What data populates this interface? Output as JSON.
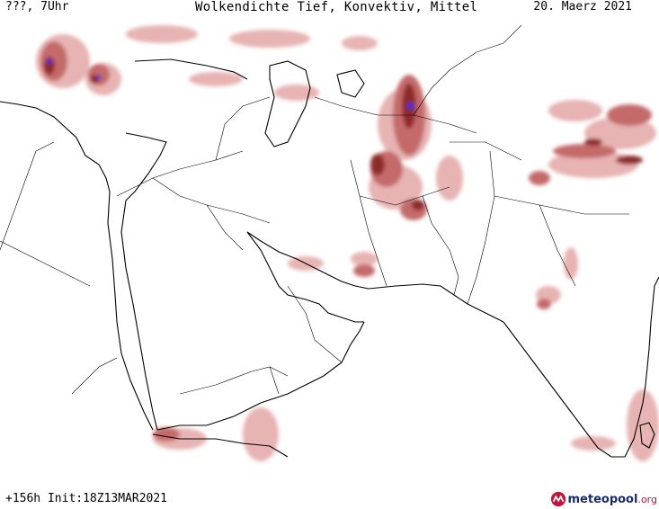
{
  "header": {
    "valid_time": "???, 7Uhr",
    "title": "Wolkendichte   Tief, Konvektiv, Mittel",
    "date": "20. Maerz 2021"
  },
  "footer": {
    "run_info": "+156h Init:18Z13MAR2021"
  },
  "logo": {
    "name": "meteopool",
    "tld": ".org"
  },
  "map": {
    "region": "Middle East, Arabian Peninsula, Iran, Afghanistan, India",
    "colors": {
      "cloud_light": "#e7b3b3",
      "cloud_mid": "#c46a6a",
      "cloud_dark": "#8f2a2a",
      "convective": "#3b2dd8",
      "coastline": "#000000",
      "borders": "#000000"
    }
  }
}
